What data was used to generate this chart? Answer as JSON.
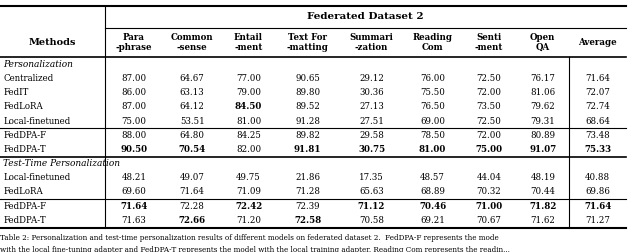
{
  "title": "Federated Dataset 2",
  "col_headers": [
    "Methods",
    "Para\n-phrase",
    "Common\n-sense",
    "Entail\n-ment",
    "Text For\n-matting",
    "Summari\n-zation",
    "Reading\nCom",
    "Senti\n-ment",
    "Open\nQA",
    "Average"
  ],
  "section1_label": "Personalization",
  "section2_label": "Test-Time Personalization",
  "rows_personalization": [
    [
      "Centralized",
      "87.00",
      "64.67",
      "77.00",
      "90.65",
      "29.12",
      "76.00",
      "72.50",
      "76.17",
      "71.64"
    ],
    [
      "FedIT",
      "86.00",
      "63.13",
      "79.00",
      "89.80",
      "30.36",
      "75.50",
      "72.00",
      "81.06",
      "72.07"
    ],
    [
      "FedLoRA",
      "87.00",
      "64.12",
      "84.50",
      "89.52",
      "27.13",
      "76.50",
      "73.50",
      "79.62",
      "72.74"
    ],
    [
      "Local-finetuned",
      "75.00",
      "53.51",
      "81.00",
      "91.28",
      "27.51",
      "69.00",
      "72.50",
      "79.31",
      "68.64"
    ],
    [
      "FedDPA-F",
      "88.00",
      "64.80",
      "84.25",
      "89.82",
      "29.58",
      "78.50",
      "72.00",
      "80.89",
      "73.48"
    ],
    [
      "FedDPA-T",
      "90.50",
      "70.54",
      "82.00",
      "91.81",
      "30.75",
      "81.00",
      "75.00",
      "91.07",
      "75.33"
    ]
  ],
  "rows_test_time": [
    [
      "Local-finetuned",
      "48.21",
      "49.07",
      "49.75",
      "21.86",
      "17.35",
      "48.57",
      "44.04",
      "48.19",
      "40.88"
    ],
    [
      "FedLoRA",
      "69.60",
      "71.64",
      "71.09",
      "71.28",
      "65.63",
      "68.89",
      "70.32",
      "70.44",
      "69.86"
    ],
    [
      "FedDPA-F",
      "71.64",
      "72.28",
      "72.42",
      "72.39",
      "71.12",
      "70.46",
      "71.00",
      "71.82",
      "71.64"
    ],
    [
      "FedDPA-T",
      "71.63",
      "72.66",
      "71.20",
      "72.58",
      "70.58",
      "69.21",
      "70.67",
      "71.62",
      "71.27"
    ]
  ],
  "bold_personalization": [
    [
      false,
      false,
      false,
      false,
      false,
      false,
      false,
      false,
      false,
      false
    ],
    [
      false,
      false,
      false,
      false,
      false,
      false,
      false,
      false,
      false,
      false
    ],
    [
      false,
      false,
      false,
      true,
      false,
      false,
      false,
      false,
      false,
      false
    ],
    [
      false,
      false,
      false,
      false,
      false,
      false,
      false,
      false,
      false,
      false
    ],
    [
      false,
      false,
      false,
      false,
      false,
      false,
      false,
      false,
      false,
      false
    ],
    [
      false,
      true,
      true,
      false,
      true,
      true,
      true,
      true,
      true,
      true
    ]
  ],
  "bold_test_time": [
    [
      false,
      false,
      false,
      false,
      false,
      false,
      false,
      false,
      false,
      false
    ],
    [
      false,
      false,
      false,
      false,
      false,
      false,
      false,
      false,
      false,
      false
    ],
    [
      false,
      true,
      false,
      true,
      false,
      true,
      true,
      true,
      true,
      true
    ],
    [
      false,
      false,
      true,
      false,
      true,
      false,
      false,
      false,
      false,
      false
    ]
  ],
  "caption": "Table 2: Personalization and test-time personalization results of different models on federated dataset 2.  FedDPA-F represents the mode\nwith the local fine-tuning adapter and FedDPA-T represents the model with the local training adapter. Reading Com represents the readin..."
}
